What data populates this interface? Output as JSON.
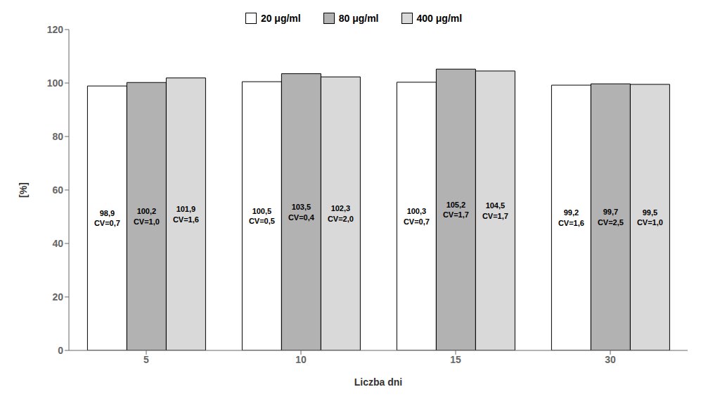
{
  "chart_data": {
    "type": "bar",
    "categories": [
      "5",
      "10",
      "15",
      "30"
    ],
    "series": [
      {
        "name": "20 μg/ml",
        "color": "white",
        "values": [
          98.9,
          100.5,
          100.3,
          99.2
        ],
        "value_labels": [
          "98,9\nCV=0,7",
          "100,5\nCV=0,5",
          "100,3\nCV=0,7",
          "99,2\nCV=1,6"
        ]
      },
      {
        "name": "80 μg/ml",
        "color": "#b2b2b2",
        "values": [
          100.2,
          103.5,
          105.2,
          99.7
        ],
        "value_labels": [
          "100,2\nCV=1,0",
          "103,5\nCV=0,4",
          "105,2\nCV=1,7",
          "99,7\nCV=2,5"
        ]
      },
      {
        "name": "400 μg/ml",
        "color": "#d9d9d9",
        "values": [
          101.9,
          102.3,
          104.5,
          99.5
        ],
        "value_labels": [
          "101,9\nCV=1,6",
          "102,3\nCV=2,0",
          "104,5\nCV=1,7",
          "99,5\nCV=1,0"
        ]
      }
    ],
    "xlabel": "Liczba dni",
    "ylabel": "[%]",
    "ylim": [
      0,
      120
    ],
    "yticks": [
      0,
      20,
      40,
      60,
      80,
      100,
      120
    ],
    "grid": false,
    "legend": "top",
    "data_labels": true
  }
}
